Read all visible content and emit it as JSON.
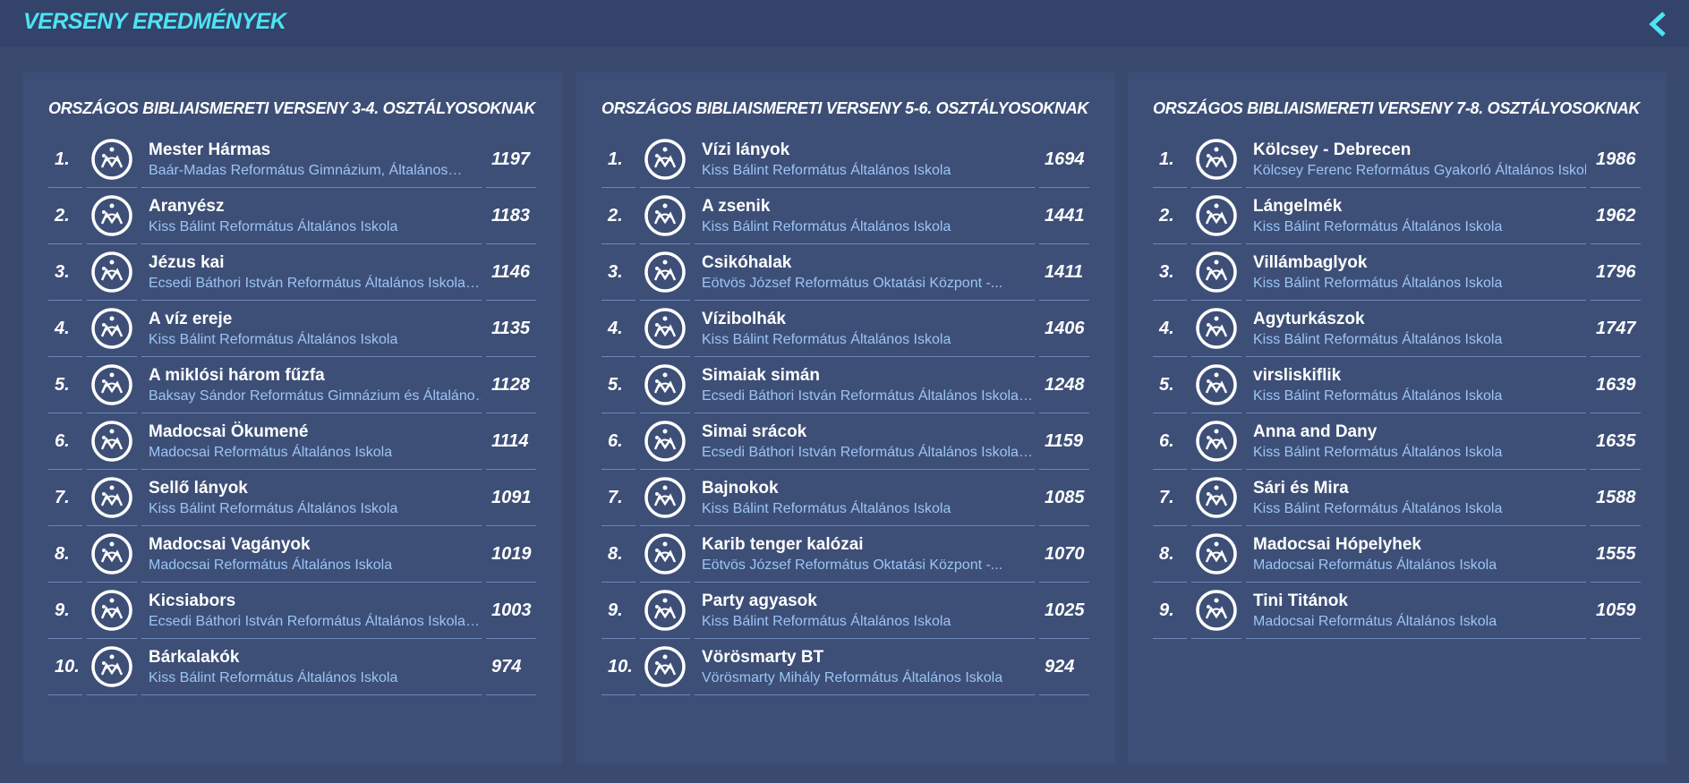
{
  "header": {
    "title": "VERSENY EREDMÉNYEK"
  },
  "panels": [
    {
      "title": "ORSZÁGOS BIBLIAISMERETI VERSENY 3-4. OSZTÁLYOSOKNAK",
      "rows": [
        [
          "1.",
          "Mester Hármas",
          "Baár-Madas Református Gimnázium, Általános…",
          "1197"
        ],
        [
          "2.",
          "Aranyész",
          "Kiss Bálint Református Általános Iskola",
          "1183"
        ],
        [
          "3.",
          "Jézus kai",
          "Ecsedi Báthori István Református Általános Iskola…",
          "1146"
        ],
        [
          "4.",
          "A víz ereje",
          "Kiss Bálint Református Általános Iskola",
          "1135"
        ],
        [
          "5.",
          "A miklósi három fűzfa",
          "Baksay Sándor Református Gimnázium és Általáno…",
          "1128"
        ],
        [
          "6.",
          "Madocsai Ökumené",
          "Madocsai Református Általános Iskola",
          "1114"
        ],
        [
          "7.",
          "Sellő lányok",
          "Kiss Bálint Református Általános Iskola",
          "1091"
        ],
        [
          "8.",
          "Madocsai Vagányok",
          "Madocsai Református Általános Iskola",
          "1019"
        ],
        [
          "9.",
          "Kicsiabors",
          "Ecsedi Báthori István Református Általános Iskola…",
          "1003"
        ],
        [
          "10.",
          "Bárkalakók",
          "Kiss Bálint Református Általános Iskola",
          "974"
        ]
      ]
    },
    {
      "title": "ORSZÁGOS BIBLIAISMERETI VERSENY 5-6. OSZTÁLYOSOKNAK",
      "rows": [
        [
          "1.",
          "Vízi lányok",
          "Kiss Bálint Református Általános Iskola",
          "1694"
        ],
        [
          "2.",
          "A zsenik",
          "Kiss Bálint Református Általános Iskola",
          "1441"
        ],
        [
          "3.",
          "Csikóhalak",
          "Eötvös József Református Oktatási Központ -...",
          "1411"
        ],
        [
          "4.",
          "Vízibolhák",
          "Kiss Bálint Református Általános Iskola",
          "1406"
        ],
        [
          "5.",
          "Simaiak simán",
          "Ecsedi Báthori István Református Általános Iskola…",
          "1248"
        ],
        [
          "6.",
          "Simai srácok",
          "Ecsedi Báthori István Református Általános Iskola…",
          "1159"
        ],
        [
          "7.",
          "Bajnokok",
          "Kiss Bálint Református Általános Iskola",
          "1085"
        ],
        [
          "8.",
          "Karib tenger kalózai",
          "Eötvös József Református Oktatási Központ -...",
          "1070"
        ],
        [
          "9.",
          "Party agyasok",
          "Kiss Bálint Református Általános Iskola",
          "1025"
        ],
        [
          "10.",
          "Vörösmarty BT",
          "Vörösmarty Mihály Református Általános Iskola",
          "924"
        ]
      ]
    },
    {
      "title": "ORSZÁGOS BIBLIAISMERETI VERSENY 7-8. OSZTÁLYOSOKNAK",
      "rows": [
        [
          "1.",
          "Kölcsey - Debrecen",
          "Kölcsey Ferenc Református Gyakorló Általános Iskol…",
          "1986"
        ],
        [
          "2.",
          "Lángelmék",
          "Kiss Bálint Református Általános Iskola",
          "1962"
        ],
        [
          "3.",
          "Villámbaglyok",
          "Kiss Bálint Református Általános Iskola",
          "1796"
        ],
        [
          "4.",
          "Agyturkászok",
          "Kiss Bálint Református Általános Iskola",
          "1747"
        ],
        [
          "5.",
          "virsliskiflik",
          "Kiss Bálint Református Általános Iskola",
          "1639"
        ],
        [
          "6.",
          "Anna and Dany",
          "Kiss Bálint Református Általános Iskola",
          "1635"
        ],
        [
          "7.",
          "Sári és Mira",
          "Kiss Bálint Református Általános Iskola",
          "1588"
        ],
        [
          "8.",
          "Madocsai Hópelyhek",
          "Madocsai Református Általános Iskola",
          "1555"
        ],
        [
          "9.",
          "Tini Titánok",
          "Madocsai Református Általános Iskola",
          "1059"
        ]
      ]
    }
  ]
}
